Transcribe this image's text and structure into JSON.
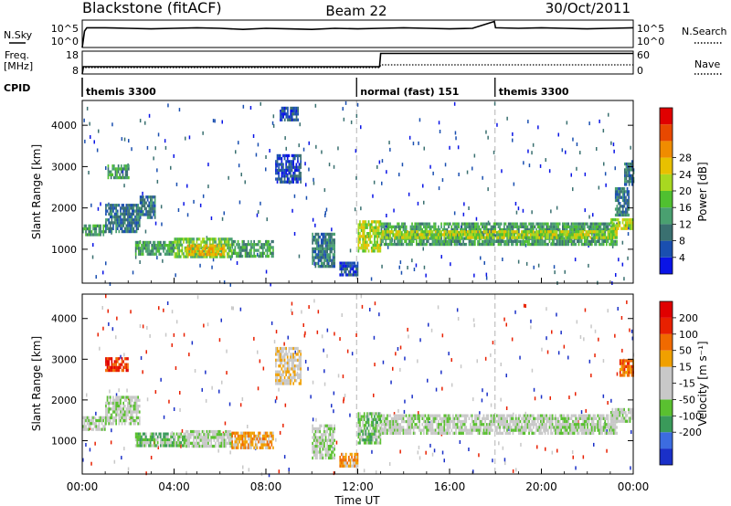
{
  "header": {
    "station": "Blackstone (fitACF)",
    "beam": "Beam 22",
    "date": "30/Oct/2011"
  },
  "time_axis": {
    "label": "Time UT",
    "ticks": [
      "00:00",
      "04:00",
      "08:00",
      "12:00",
      "16:00",
      "20:00",
      "00:00"
    ],
    "range_hours": [
      0,
      24
    ]
  },
  "chart_data": [
    {
      "type": "line",
      "panel": "noise",
      "left_label": "N.Sky",
      "right_label": "N.Search",
      "left_ticks": [
        "10^5",
        "10^0"
      ],
      "right_ticks": [
        "10^5",
        "10^0"
      ],
      "series": [
        {
          "name": "N.Sky",
          "x_hours": [
            0,
            0.1,
            0.2,
            1,
            2,
            3,
            4,
            5,
            6,
            7,
            8,
            9,
            10,
            11,
            12,
            13,
            14,
            15,
            16,
            17,
            17.95,
            18,
            19,
            20,
            21,
            22,
            23,
            24
          ],
          "value_frac": [
            0.0,
            0.6,
            0.72,
            0.72,
            0.7,
            0.68,
            0.7,
            0.72,
            0.7,
            0.66,
            0.7,
            0.68,
            0.66,
            0.7,
            0.68,
            0.7,
            0.72,
            0.7,
            0.68,
            0.7,
            0.95,
            0.72,
            0.7,
            0.72,
            0.7,
            0.68,
            0.7,
            0.72
          ]
        }
      ]
    },
    {
      "type": "line",
      "panel": "frequency",
      "left_label": "Freq.",
      "left_unit": "[MHz]",
      "right_label": "Nave",
      "left_ticks": [
        "18",
        "8"
      ],
      "right_ticks": [
        "60",
        "0"
      ],
      "series": [
        {
          "name": "Freq.",
          "x_hours": [
            0,
            0.05,
            12.95,
            13.0,
            24
          ],
          "value_frac": [
            0.0,
            0.32,
            0.32,
            0.9,
            0.9
          ]
        },
        {
          "name": "Nave",
          "x_hours": [
            0,
            12.95,
            13.0,
            24
          ],
          "value_frac": [
            0.28,
            0.28,
            0.4,
            0.4
          ]
        }
      ]
    },
    {
      "type": "table",
      "panel": "cpid",
      "label": "CPID",
      "segments": [
        {
          "start_hours": 0,
          "text": "themis 3300"
        },
        {
          "start_hours": 11.95,
          "text": "normal (fast) 151"
        },
        {
          "start_hours": 17.98,
          "text": "themis 3300"
        }
      ]
    },
    {
      "type": "heatmap",
      "panel": "power",
      "ylabel": "Slant Range [km]",
      "yticks": [
        1000,
        2000,
        3000,
        4000
      ],
      "ylim": [
        180,
        4600
      ],
      "colorbar_label": "Power [dB]",
      "colorbar_ticks": [
        "4",
        "8",
        "12",
        "16",
        "20",
        "24",
        "28"
      ],
      "colorbar_colors": [
        "#0a14e6",
        "#1a4fb0",
        "#3a7070",
        "#4aa070",
        "#50c030",
        "#a8d820",
        "#e8c000",
        "#f08c00",
        "#e84800",
        "#e00000"
      ],
      "regions": [
        {
          "t0": 0.0,
          "t1": 1.0,
          "r0": 1320,
          "r1": 1600,
          "level": 3
        },
        {
          "t0": 1.0,
          "t1": 2.5,
          "r0": 1450,
          "r1": 2100,
          "level": 2
        },
        {
          "t0": 2.5,
          "t1": 3.2,
          "r0": 1800,
          "r1": 2300,
          "level": 2
        },
        {
          "t0": 1.1,
          "t1": 2.0,
          "r0": 2700,
          "r1": 3050,
          "level": 3
        },
        {
          "t0": 2.3,
          "t1": 4.0,
          "r0": 860,
          "r1": 1200,
          "level": 3
        },
        {
          "t0": 4.0,
          "t1": 6.5,
          "r0": 820,
          "r1": 1280,
          "level": 4
        },
        {
          "t0": 4.5,
          "t1": 6.2,
          "r0": 900,
          "r1": 1120,
          "level": 6
        },
        {
          "t0": 6.5,
          "t1": 8.3,
          "r0": 840,
          "r1": 1220,
          "level": 3
        },
        {
          "t0": 8.4,
          "t1": 9.5,
          "r0": 2600,
          "r1": 3300,
          "level": 1
        },
        {
          "t0": 8.6,
          "t1": 9.4,
          "r0": 4100,
          "r1": 4450,
          "level": 1
        },
        {
          "t0": 10.0,
          "t1": 11.0,
          "r0": 600,
          "r1": 1400,
          "level": 2
        },
        {
          "t0": 11.2,
          "t1": 12.0,
          "r0": 350,
          "r1": 700,
          "level": 1
        },
        {
          "t0": 12.0,
          "t1": 13.0,
          "r0": 950,
          "r1": 1700,
          "level": 5
        },
        {
          "t0": 13.0,
          "t1": 23.3,
          "r0": 1150,
          "r1": 1650,
          "level": 3
        },
        {
          "t0": 13.0,
          "t1": 23.3,
          "r0": 1280,
          "r1": 1460,
          "level": 5
        },
        {
          "t0": 23.0,
          "t1": 24.0,
          "r0": 1500,
          "r1": 1750,
          "level": 5
        },
        {
          "t0": 23.2,
          "t1": 23.8,
          "r0": 1800,
          "r1": 2500,
          "level": 2
        },
        {
          "t0": 23.6,
          "t1": 24.0,
          "r0": 2600,
          "r1": 3100,
          "level": 2
        }
      ]
    },
    {
      "type": "heatmap",
      "panel": "velocity",
      "ylabel": "Slant Range [km]",
      "yticks": [
        1000,
        2000,
        3000,
        4000
      ],
      "ylim": [
        180,
        4600
      ],
      "colorbar_label": "Velocity [m s⁻¹]",
      "colorbar_ticks": [
        "200",
        "100",
        "50",
        "15",
        "-15",
        "-50",
        "-100",
        "-200"
      ],
      "colorbar_colors": [
        "#1a30c8",
        "#3c6ce0",
        "#3a9a5a",
        "#5ac030",
        "#c8c8c8",
        "#c8c8c8",
        "#f0a000",
        "#f06a00",
        "#e82000",
        "#e00000"
      ],
      "regions": [
        {
          "t0": 0.0,
          "t1": 1.0,
          "r0": 1300,
          "r1": 1600,
          "level": 4
        },
        {
          "t0": 1.0,
          "t1": 2.5,
          "r0": 1450,
          "r1": 2100,
          "level": 4
        },
        {
          "t0": 1.0,
          "t1": 2.0,
          "r0": 2750,
          "r1": 3050,
          "level": 8
        },
        {
          "t0": 2.3,
          "t1": 4.5,
          "r0": 860,
          "r1": 1200,
          "level": 3
        },
        {
          "t0": 4.5,
          "t1": 6.5,
          "r0": 840,
          "r1": 1260,
          "level": 4
        },
        {
          "t0": 6.5,
          "t1": 8.3,
          "r0": 840,
          "r1": 1220,
          "level": 6
        },
        {
          "t0": 8.4,
          "t1": 9.5,
          "r0": 2400,
          "r1": 3300,
          "level": 5
        },
        {
          "t0": 10.0,
          "t1": 11.0,
          "r0": 600,
          "r1": 1400,
          "level": 4
        },
        {
          "t0": 11.2,
          "t1": 12.0,
          "r0": 350,
          "r1": 700,
          "level": 6
        },
        {
          "t0": 12.0,
          "t1": 13.0,
          "r0": 950,
          "r1": 1700,
          "level": 3
        },
        {
          "t0": 13.0,
          "t1": 23.3,
          "r0": 1150,
          "r1": 1650,
          "level": 4
        },
        {
          "t0": 23.0,
          "t1": 24.0,
          "r0": 1500,
          "r1": 1800,
          "level": 4
        },
        {
          "t0": 23.4,
          "t1": 24.0,
          "r0": 2600,
          "r1": 3000,
          "level": 7
        }
      ]
    }
  ]
}
